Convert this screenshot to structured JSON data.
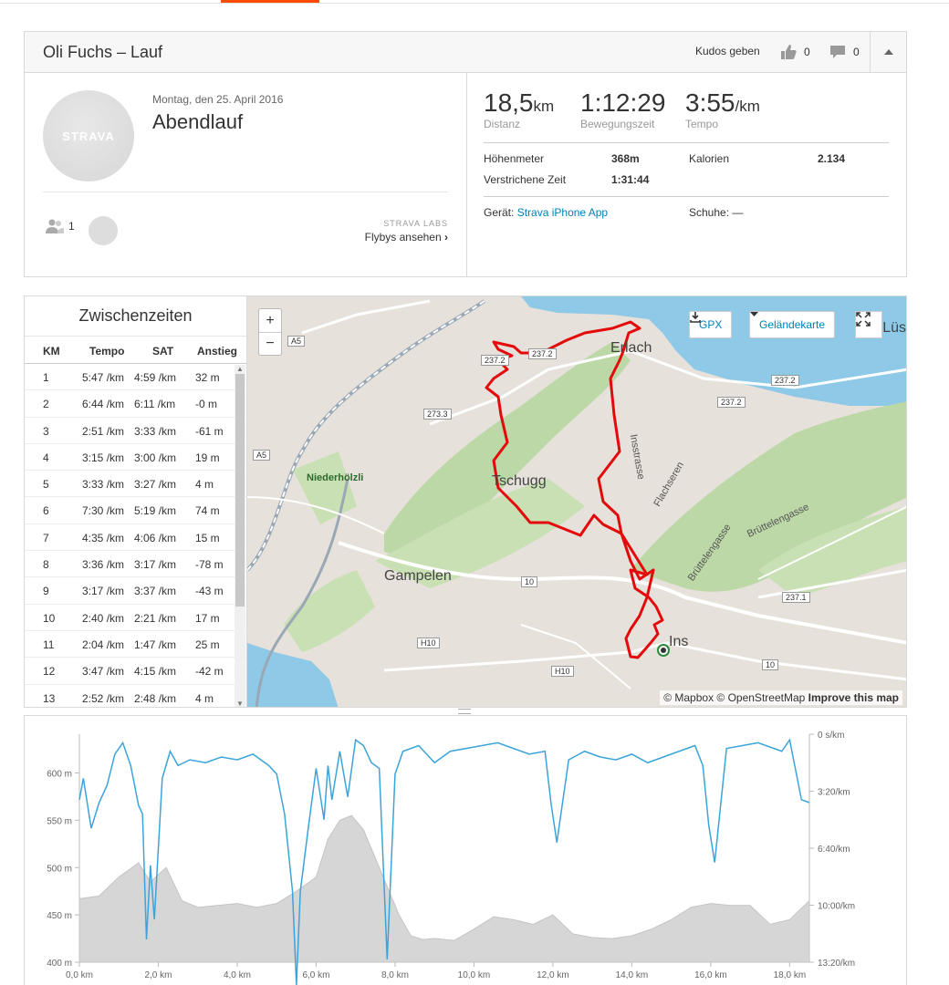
{
  "header": {
    "title": "Oli Fuchs – Lauf",
    "kudos_label": "Kudos geben",
    "kudos_count": "0",
    "comment_count": "0"
  },
  "activity": {
    "date": "Montag, den 25. April 2016",
    "name": "Abendlauf",
    "avatar_text": "STRAVA",
    "athlete_count": "1",
    "labs_label": "STRAVA LABS",
    "flyby_link": "Flybys ansehen"
  },
  "stats": {
    "distance": {
      "value": "18,5",
      "unit": "km",
      "label": "Distanz"
    },
    "moving_time": {
      "value": "1:12:29",
      "label": "Bewegungszeit"
    },
    "pace": {
      "value": "3:55",
      "unit": "/km",
      "label": "Tempo"
    },
    "elevation_label": "Höhenmeter",
    "elevation_value": "368m",
    "calories_label": "Kalorien",
    "calories_value": "2.134",
    "elapsed_label": "Verstrichene Zeit",
    "elapsed_value": "1:31:44",
    "device_label": "Gerät:",
    "device_value": "Strava iPhone App",
    "shoes_label": "Schuhe:",
    "shoes_value": "—"
  },
  "splits": {
    "title": "Zwischenzeiten",
    "columns": [
      "KM",
      "Tempo",
      "SAT",
      "Anstieg"
    ],
    "rows": [
      [
        "1",
        "5:47 /km",
        "4:59 /km",
        "32 m"
      ],
      [
        "2",
        "6:44 /km",
        "6:11 /km",
        "-0 m"
      ],
      [
        "3",
        "2:51 /km",
        "3:33 /km",
        "-61 m"
      ],
      [
        "4",
        "3:15 /km",
        "3:00 /km",
        "19 m"
      ],
      [
        "5",
        "3:33 /km",
        "3:27 /km",
        "4 m"
      ],
      [
        "6",
        "7:30 /km",
        "5:19 /km",
        "74 m"
      ],
      [
        "7",
        "4:35 /km",
        "4:06 /km",
        "15 m"
      ],
      [
        "8",
        "3:36 /km",
        "3:17 /km",
        "-78 m"
      ],
      [
        "9",
        "3:17 /km",
        "3:37 /km",
        "-43 m"
      ],
      [
        "10",
        "2:40 /km",
        "2:21 /km",
        "17 m"
      ],
      [
        "11",
        "2:04 /km",
        "1:47 /km",
        "25 m"
      ],
      [
        "12",
        "3:47 /km",
        "4:15 /km",
        "-42 m"
      ],
      [
        "13",
        "2:52 /km",
        "2:48 /km",
        "4 m"
      ]
    ]
  },
  "map": {
    "zoom_in": "+",
    "zoom_out": "−",
    "gpx_label": "GPX",
    "layer_label": "Geländekarte",
    "attribution_1": "© Mapbox © OpenStreetMap",
    "attribution_2": "Improve this map",
    "labels": {
      "erlach": "Erlach",
      "tschugg": "Tschugg",
      "gampelen": "Gampelen",
      "niederholzli": "Niederhölzli",
      "insstrasse": "Insstrasse",
      "flachseren": "Flachseren",
      "bruttelengasse1": "Brüttelengasse",
      "bruttelengasse2": "Brüttelengasse",
      "ins": "Ins",
      "lus": "Lüs"
    },
    "shields": {
      "a5_1": "A5",
      "a5_2": "A5",
      "r2372_a": "237.2",
      "r2372_b": "237.2",
      "r2372_c": "237.2",
      "r2372_d": "237.2",
      "r2733": "273.3",
      "r10_a": "10",
      "r10_b": "10",
      "h10_a": "H10",
      "h10_b": "H10",
      "r2371": "237.1"
    }
  },
  "chart_data": {
    "type": "area",
    "xlabel": "",
    "x_ticks": [
      "0,0 km",
      "2,0 km",
      "4,0 km",
      "6,0 km",
      "8,0 km",
      "10,0 km",
      "12,0 km",
      "14,0 km",
      "16,0 km",
      "18,0 km"
    ],
    "xlim": [
      0,
      18.5
    ],
    "y_left_ticks": [
      "400 m",
      "450 m",
      "500 m",
      "550 m",
      "600 m"
    ],
    "ylim_left": [
      400,
      600
    ],
    "y_right_ticks": [
      "0 s/km",
      "3:20/km",
      "6:40/km",
      "10:00/km",
      "13:20/km"
    ],
    "ylim_right_seconds": [
      0,
      800
    ],
    "series": [
      {
        "type": "area",
        "x": [
          0,
          0.5,
          1,
          1.5,
          1.8,
          2.2,
          2.6,
          3,
          3.5,
          4,
          4.5,
          5,
          5.5,
          6,
          6.3,
          6.6,
          6.9,
          7.2,
          7.5,
          7.8,
          8.1,
          8.4,
          8.7,
          9,
          9.5,
          10,
          10.5,
          11,
          11.5,
          12,
          12.5,
          13,
          13.5,
          14,
          14.5,
          15,
          15.5,
          16,
          16.5,
          17,
          17.5,
          18,
          18.5
        ],
        "values": [
          467,
          470,
          490,
          505,
          485,
          500,
          465,
          458,
          460,
          462,
          458,
          462,
          475,
          490,
          530,
          550,
          555,
          540,
          510,
          480,
          450,
          428,
          424,
          425,
          423,
          435,
          448,
          445,
          440,
          450,
          430,
          426,
          425,
          428,
          435,
          445,
          458,
          462,
          460,
          460,
          440,
          445,
          465
        ]
      },
      {
        "type": "line",
        "x": [
          0,
          0.1,
          0.3,
          0.5,
          0.7,
          0.9,
          1.1,
          1.3,
          1.5,
          1.6,
          1.7,
          1.8,
          1.9,
          2.1,
          2.3,
          2.5,
          2.8,
          3.2,
          3.6,
          4,
          4.4,
          4.8,
          5,
          5.2,
          5.4,
          5.5,
          5.6,
          5.8,
          6,
          6.2,
          6.3,
          6.4,
          6.6,
          6.8,
          7,
          7.2,
          7.4,
          7.6,
          7.8,
          8,
          8.2,
          8.6,
          9,
          9.4,
          9.8,
          10.2,
          10.6,
          11,
          11.4,
          11.8,
          11.95,
          12.1,
          12.4,
          12.8,
          13.2,
          13.6,
          14,
          14.4,
          14.8,
          15.2,
          15.6,
          15.8,
          15.95,
          16.1,
          16.4,
          16.8,
          17.2,
          17.6,
          17.8,
          18,
          18.3,
          18.5
        ],
        "values": [
          230,
          155,
          330,
          240,
          180,
          70,
          30,
          110,
          250,
          280,
          720,
          460,
          650,
          155,
          60,
          110,
          90,
          100,
          80,
          90,
          70,
          110,
          140,
          280,
          550,
          880,
          550,
          330,
          120,
          300,
          110,
          230,
          60,
          220,
          20,
          40,
          100,
          120,
          790,
          140,
          60,
          40,
          100,
          60,
          50,
          40,
          30,
          50,
          70,
          60,
          240,
          380,
          90,
          60,
          80,
          90,
          70,
          100,
          80,
          60,
          40,
          110,
          320,
          450,
          50,
          40,
          30,
          50,
          60,
          20,
          230,
          240
        ]
      }
    ]
  }
}
